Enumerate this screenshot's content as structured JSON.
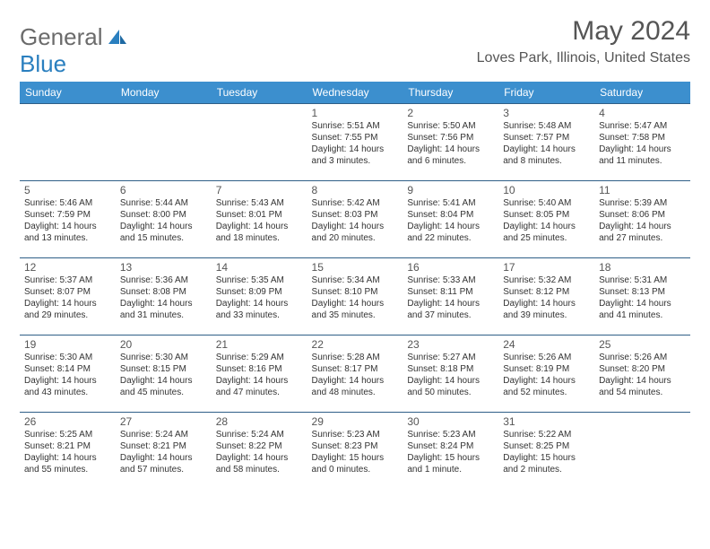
{
  "logo": {
    "text_a": "General",
    "text_b": "Blue",
    "icon_color": "#2a7fbf"
  },
  "header": {
    "month": "May 2024",
    "location": "Loves Park, Illinois, United States"
  },
  "colors": {
    "header_bg": "#3c8fce",
    "header_text": "#ffffff",
    "border": "#2f5f87",
    "body_text": "#333333"
  },
  "daynames": [
    "Sunday",
    "Monday",
    "Tuesday",
    "Wednesday",
    "Thursday",
    "Friday",
    "Saturday"
  ],
  "first_weekday": 3,
  "days": [
    {
      "n": 1,
      "sr": "5:51 AM",
      "ss": "7:55 PM",
      "dl": "14 hours and 3 minutes."
    },
    {
      "n": 2,
      "sr": "5:50 AM",
      "ss": "7:56 PM",
      "dl": "14 hours and 6 minutes."
    },
    {
      "n": 3,
      "sr": "5:48 AM",
      "ss": "7:57 PM",
      "dl": "14 hours and 8 minutes."
    },
    {
      "n": 4,
      "sr": "5:47 AM",
      "ss": "7:58 PM",
      "dl": "14 hours and 11 minutes."
    },
    {
      "n": 5,
      "sr": "5:46 AM",
      "ss": "7:59 PM",
      "dl": "14 hours and 13 minutes."
    },
    {
      "n": 6,
      "sr": "5:44 AM",
      "ss": "8:00 PM",
      "dl": "14 hours and 15 minutes."
    },
    {
      "n": 7,
      "sr": "5:43 AM",
      "ss": "8:01 PM",
      "dl": "14 hours and 18 minutes."
    },
    {
      "n": 8,
      "sr": "5:42 AM",
      "ss": "8:03 PM",
      "dl": "14 hours and 20 minutes."
    },
    {
      "n": 9,
      "sr": "5:41 AM",
      "ss": "8:04 PM",
      "dl": "14 hours and 22 minutes."
    },
    {
      "n": 10,
      "sr": "5:40 AM",
      "ss": "8:05 PM",
      "dl": "14 hours and 25 minutes."
    },
    {
      "n": 11,
      "sr": "5:39 AM",
      "ss": "8:06 PM",
      "dl": "14 hours and 27 minutes."
    },
    {
      "n": 12,
      "sr": "5:37 AM",
      "ss": "8:07 PM",
      "dl": "14 hours and 29 minutes."
    },
    {
      "n": 13,
      "sr": "5:36 AM",
      "ss": "8:08 PM",
      "dl": "14 hours and 31 minutes."
    },
    {
      "n": 14,
      "sr": "5:35 AM",
      "ss": "8:09 PM",
      "dl": "14 hours and 33 minutes."
    },
    {
      "n": 15,
      "sr": "5:34 AM",
      "ss": "8:10 PM",
      "dl": "14 hours and 35 minutes."
    },
    {
      "n": 16,
      "sr": "5:33 AM",
      "ss": "8:11 PM",
      "dl": "14 hours and 37 minutes."
    },
    {
      "n": 17,
      "sr": "5:32 AM",
      "ss": "8:12 PM",
      "dl": "14 hours and 39 minutes."
    },
    {
      "n": 18,
      "sr": "5:31 AM",
      "ss": "8:13 PM",
      "dl": "14 hours and 41 minutes."
    },
    {
      "n": 19,
      "sr": "5:30 AM",
      "ss": "8:14 PM",
      "dl": "14 hours and 43 minutes."
    },
    {
      "n": 20,
      "sr": "5:30 AM",
      "ss": "8:15 PM",
      "dl": "14 hours and 45 minutes."
    },
    {
      "n": 21,
      "sr": "5:29 AM",
      "ss": "8:16 PM",
      "dl": "14 hours and 47 minutes."
    },
    {
      "n": 22,
      "sr": "5:28 AM",
      "ss": "8:17 PM",
      "dl": "14 hours and 48 minutes."
    },
    {
      "n": 23,
      "sr": "5:27 AM",
      "ss": "8:18 PM",
      "dl": "14 hours and 50 minutes."
    },
    {
      "n": 24,
      "sr": "5:26 AM",
      "ss": "8:19 PM",
      "dl": "14 hours and 52 minutes."
    },
    {
      "n": 25,
      "sr": "5:26 AM",
      "ss": "8:20 PM",
      "dl": "14 hours and 54 minutes."
    },
    {
      "n": 26,
      "sr": "5:25 AM",
      "ss": "8:21 PM",
      "dl": "14 hours and 55 minutes."
    },
    {
      "n": 27,
      "sr": "5:24 AM",
      "ss": "8:21 PM",
      "dl": "14 hours and 57 minutes."
    },
    {
      "n": 28,
      "sr": "5:24 AM",
      "ss": "8:22 PM",
      "dl": "14 hours and 58 minutes."
    },
    {
      "n": 29,
      "sr": "5:23 AM",
      "ss": "8:23 PM",
      "dl": "15 hours and 0 minutes."
    },
    {
      "n": 30,
      "sr": "5:23 AM",
      "ss": "8:24 PM",
      "dl": "15 hours and 1 minute."
    },
    {
      "n": 31,
      "sr": "5:22 AM",
      "ss": "8:25 PM",
      "dl": "15 hours and 2 minutes."
    }
  ],
  "labels": {
    "sunrise": "Sunrise: ",
    "sunset": "Sunset: ",
    "daylight": "Daylight: "
  }
}
